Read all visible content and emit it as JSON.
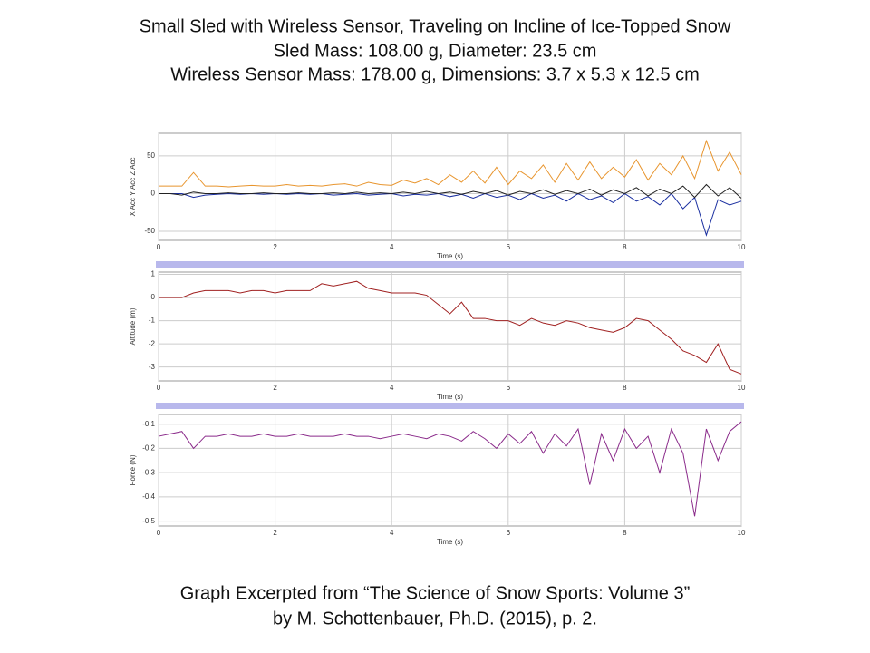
{
  "title_lines": [
    "Small Sled with Wireless Sensor, Traveling on Incline of Ice-Topped Snow",
    "Sled Mass:  108.00 g, Diameter: 23.5 cm",
    "Wireless Sensor Mass: 178.00 g, Dimensions: 3.7 x 5.3 x 12.5 cm"
  ],
  "caption_lines": [
    "Graph Excerpted from “The Science of Snow Sports: Volume 3”",
    "by M. Schottenbauer, Ph.D. (2015), p. 2."
  ],
  "chart_data": [
    {
      "type": "line",
      "x_label": "Time (s)",
      "y_label": "X Acc Y Acc Z Acc",
      "x": [
        0,
        0.2,
        0.4,
        0.6,
        0.8,
        1,
        1.2,
        1.4,
        1.6,
        1.8,
        2,
        2.2,
        2.4,
        2.6,
        2.8,
        3,
        3.2,
        3.4,
        3.6,
        3.8,
        4,
        4.2,
        4.4,
        4.6,
        4.8,
        5,
        5.2,
        5.4,
        5.6,
        5.8,
        6,
        6.2,
        6.4,
        6.6,
        6.8,
        7,
        7.2,
        7.4,
        7.6,
        7.8,
        8,
        8.2,
        8.4,
        8.6,
        8.8,
        9,
        9.2,
        9.4,
        9.6,
        9.8,
        10
      ],
      "xlim": [
        0,
        10
      ],
      "xticks": [
        0,
        2,
        4,
        6,
        8,
        10
      ],
      "ylim": [
        -62,
        80
      ],
      "yticks": [
        -50,
        0,
        50
      ],
      "grid": true,
      "series": [
        {
          "color": "#e8952e",
          "values": [
            10,
            10,
            10,
            28,
            10,
            10,
            9,
            10,
            11,
            10,
            10,
            12,
            10,
            11,
            10,
            12,
            13,
            10,
            15,
            12,
            11,
            18,
            14,
            20,
            12,
            25,
            15,
            30,
            14,
            35,
            12,
            30,
            20,
            38,
            15,
            40,
            18,
            42,
            20,
            35,
            22,
            45,
            18,
            40,
            25,
            50,
            20,
            70,
            30,
            55,
            25
          ]
        },
        {
          "color": "#1a2fa0",
          "values": [
            0,
            0,
            0,
            -5,
            -2,
            -1,
            0,
            -1,
            0,
            -1,
            0,
            -1,
            0,
            -1,
            0,
            -2,
            -1,
            0,
            -2,
            -1,
            0,
            -3,
            -1,
            -2,
            0,
            -4,
            -1,
            -6,
            0,
            -5,
            -2,
            -8,
            0,
            -6,
            -2,
            -10,
            0,
            -8,
            -3,
            -12,
            0,
            -10,
            -4,
            -15,
            0,
            -20,
            -5,
            -55,
            -8,
            -15,
            -10
          ]
        },
        {
          "color": "#222222",
          "values": [
            0,
            0,
            -2,
            2,
            0,
            0,
            1,
            0,
            0,
            1,
            0,
            0,
            1,
            0,
            0,
            1,
            0,
            2,
            0,
            1,
            0,
            2,
            0,
            3,
            0,
            2,
            -1,
            3,
            0,
            4,
            -2,
            3,
            0,
            5,
            -1,
            4,
            0,
            6,
            -2,
            5,
            0,
            8,
            -3,
            6,
            0,
            10,
            -5,
            12,
            -3,
            8,
            -6
          ]
        }
      ]
    },
    {
      "type": "line",
      "x_label": "Time (s)",
      "y_label": "Altitude (m)",
      "x": [
        0,
        0.2,
        0.4,
        0.6,
        0.8,
        1,
        1.2,
        1.4,
        1.6,
        1.8,
        2,
        2.2,
        2.4,
        2.6,
        2.8,
        3,
        3.2,
        3.4,
        3.6,
        3.8,
        4,
        4.2,
        4.4,
        4.6,
        4.8,
        5,
        5.2,
        5.4,
        5.6,
        5.8,
        6,
        6.2,
        6.4,
        6.6,
        6.8,
        7,
        7.2,
        7.4,
        7.6,
        7.8,
        8,
        8.2,
        8.4,
        8.6,
        8.8,
        9,
        9.2,
        9.4,
        9.6,
        9.8,
        10
      ],
      "xlim": [
        0,
        10
      ],
      "xticks": [
        0,
        2,
        4,
        6,
        8,
        10
      ],
      "ylim": [
        -3.6,
        1.1
      ],
      "yticks": [
        -3,
        -2,
        -1,
        0,
        1
      ],
      "grid": true,
      "series": [
        {
          "color": "#a02020",
          "values": [
            0,
            0,
            0,
            0.2,
            0.3,
            0.3,
            0.3,
            0.2,
            0.3,
            0.3,
            0.2,
            0.3,
            0.3,
            0.3,
            0.6,
            0.5,
            0.6,
            0.7,
            0.4,
            0.3,
            0.2,
            0.2,
            0.2,
            0.1,
            -0.3,
            -0.7,
            -0.2,
            -0.9,
            -0.9,
            -1.0,
            -1.0,
            -1.2,
            -0.9,
            -1.1,
            -1.2,
            -1.0,
            -1.1,
            -1.3,
            -1.4,
            -1.5,
            -1.3,
            -0.9,
            -1.0,
            -1.4,
            -1.8,
            -2.3,
            -2.5,
            -2.8,
            -2.0,
            -3.1,
            -3.3
          ]
        }
      ]
    },
    {
      "type": "line",
      "x_label": "Time (s)",
      "y_label": "Force (N)",
      "x": [
        0,
        0.2,
        0.4,
        0.6,
        0.8,
        1,
        1.2,
        1.4,
        1.6,
        1.8,
        2,
        2.2,
        2.4,
        2.6,
        2.8,
        3,
        3.2,
        3.4,
        3.6,
        3.8,
        4,
        4.2,
        4.4,
        4.6,
        4.8,
        5,
        5.2,
        5.4,
        5.6,
        5.8,
        6,
        6.2,
        6.4,
        6.6,
        6.8,
        7,
        7.2,
        7.4,
        7.6,
        7.8,
        8,
        8.2,
        8.4,
        8.6,
        8.8,
        9,
        9.2,
        9.4,
        9.6,
        9.8,
        10
      ],
      "xlim": [
        0,
        10
      ],
      "xticks": [
        0,
        2,
        4,
        6,
        8,
        10
      ],
      "ylim": [
        -0.52,
        -0.06
      ],
      "yticks": [
        -0.5,
        -0.4,
        -0.3,
        -0.2,
        -0.1
      ],
      "grid": true,
      "series": [
        {
          "color": "#8a2a8a",
          "values": [
            -0.15,
            -0.14,
            -0.13,
            -0.2,
            -0.15,
            -0.15,
            -0.14,
            -0.15,
            -0.15,
            -0.14,
            -0.15,
            -0.15,
            -0.14,
            -0.15,
            -0.15,
            -0.15,
            -0.14,
            -0.15,
            -0.15,
            -0.16,
            -0.15,
            -0.14,
            -0.15,
            -0.16,
            -0.14,
            -0.15,
            -0.17,
            -0.13,
            -0.16,
            -0.2,
            -0.14,
            -0.18,
            -0.13,
            -0.22,
            -0.14,
            -0.19,
            -0.12,
            -0.35,
            -0.14,
            -0.25,
            -0.12,
            -0.2,
            -0.15,
            -0.3,
            -0.12,
            -0.22,
            -0.48,
            -0.12,
            -0.25,
            -0.13,
            -0.09
          ]
        }
      ]
    }
  ]
}
